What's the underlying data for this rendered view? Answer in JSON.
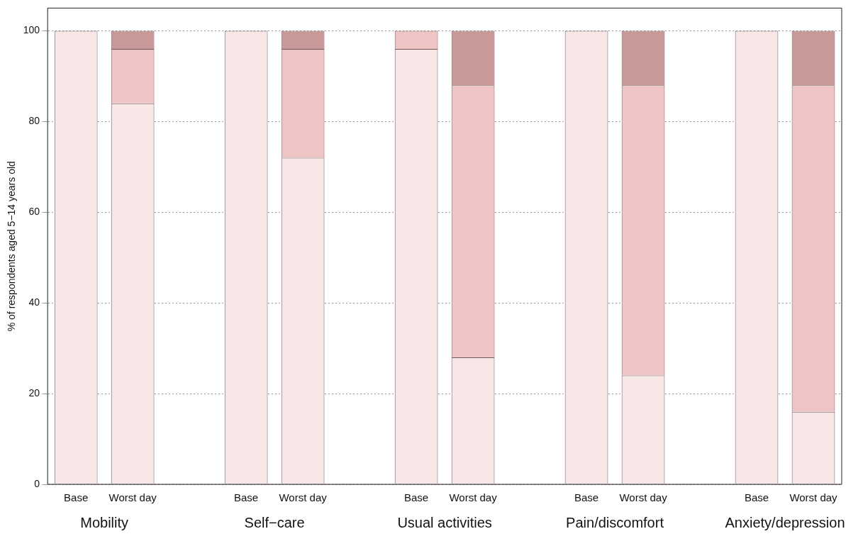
{
  "chart_data": {
    "type": "bar",
    "stacked": true,
    "ylabel": "% of respondents aged 5−14 years old",
    "categories": [
      "Base",
      "Worst day",
      null,
      "Base",
      "Worst day",
      null,
      "Base",
      "Worst day",
      null,
      "Base",
      "Worst day",
      null,
      "Base",
      "Worst day"
    ],
    "series": [
      {
        "color": "#f8e7e7",
        "values": [
          100,
          84,
          null,
          100,
          72,
          null,
          96,
          28,
          null,
          100,
          24,
          null,
          100,
          16
        ]
      },
      {
        "color": "#efc4c4",
        "values": [
          0,
          12,
          null,
          0,
          24,
          null,
          4,
          60,
          null,
          0,
          64,
          null,
          0,
          72
        ]
      },
      {
        "color": "#c99898",
        "values": [
          0,
          4,
          null,
          0,
          4,
          null,
          0,
          12,
          null,
          0,
          12,
          null,
          0,
          12
        ]
      }
    ],
    "ylim": [
      0,
      105
    ],
    "yticks": [
      0,
      20,
      40,
      60,
      80,
      100
    ],
    "grid": "y",
    "legend": false,
    "annotations": [
      "Mobility",
      "Self−care",
      "Usual activities",
      "Pain/discomfort",
      "Anxiety/depression"
    ]
  }
}
